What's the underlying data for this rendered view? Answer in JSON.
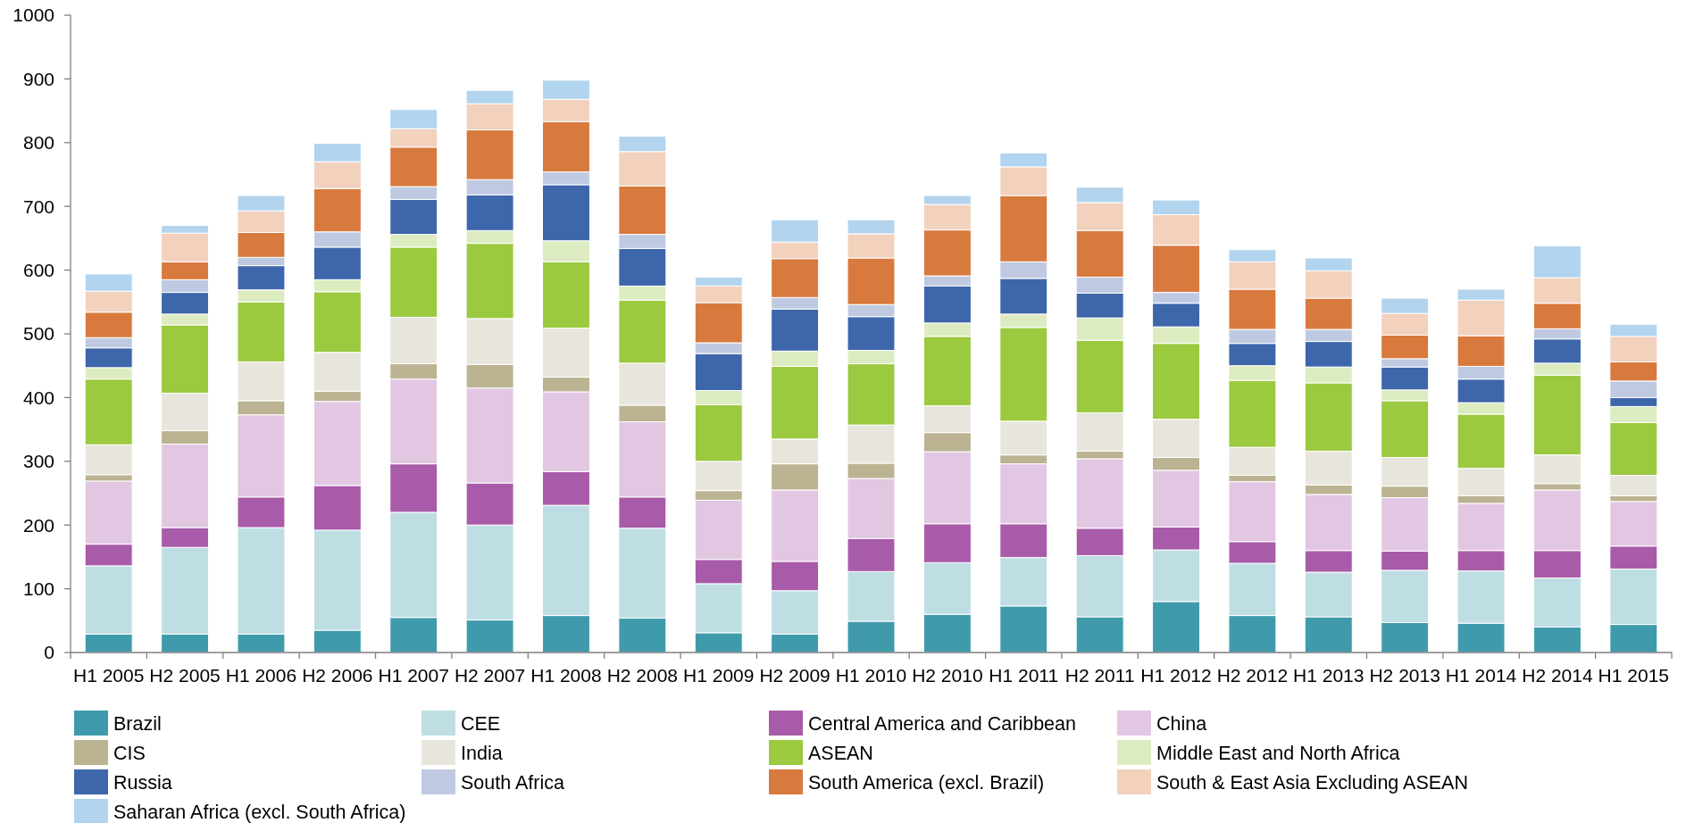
{
  "chart_data": {
    "type": "bar",
    "stacked": true,
    "legend": "bottom",
    "categories": [
      "H1 2005",
      "H2 2005",
      "H1 2006",
      "H2 2006",
      "H1 2007",
      "H2 2007",
      "H1 2008",
      "H2 2008",
      "H1 2009",
      "H2 2009",
      "H1 2010",
      "H2 2010",
      "H1 2011",
      "H2 2011",
      "H1 2012",
      "H2 2012",
      "H1 2013",
      "H2 2013",
      "H1 2014",
      "H2 2014",
      "H1 2015"
    ],
    "ylim": [
      0,
      1000
    ],
    "yticks": [
      0,
      100,
      200,
      300,
      400,
      500,
      600,
      700,
      800,
      900,
      1000
    ],
    "series": [
      {
        "name": "Brazil",
        "color": "#3f9bab",
        "values": [
          29,
          29,
          29,
          35,
          55,
          51,
          58,
          54,
          31,
          29,
          49,
          60,
          73,
          56,
          80,
          58,
          56,
          47,
          46,
          40,
          44
        ]
      },
      {
        "name": "CEE",
        "color": "#bfdee3",
        "values": [
          107,
          136,
          167,
          157,
          165,
          149,
          173,
          141,
          77,
          68,
          78,
          81,
          76,
          96,
          81,
          82,
          70,
          82,
          82,
          77,
          87
        ]
      },
      {
        "name": "Central America and Caribbean",
        "color": "#a85ba8",
        "values": [
          34,
          31,
          48,
          70,
          76,
          66,
          53,
          49,
          38,
          46,
          52,
          61,
          53,
          43,
          36,
          34,
          34,
          30,
          32,
          43,
          36
        ]
      },
      {
        "name": "China",
        "color": "#e2c7e2",
        "values": [
          99,
          131,
          129,
          132,
          133,
          149,
          125,
          118,
          93,
          112,
          94,
          113,
          94,
          109,
          89,
          94,
          88,
          84,
          74,
          95,
          70
        ]
      },
      {
        "name": "CIS",
        "color": "#bbb391",
        "values": [
          10,
          21,
          22,
          16,
          24,
          37,
          23,
          26,
          15,
          41,
          24,
          30,
          14,
          12,
          20,
          10,
          15,
          18,
          12,
          10,
          9
        ]
      },
      {
        "name": "India",
        "color": "#e8e6dc",
        "values": [
          47,
          59,
          61,
          61,
          73,
          72,
          77,
          66,
          46,
          39,
          60,
          42,
          53,
          60,
          60,
          44,
          53,
          45,
          43,
          45,
          32
        ]
      },
      {
        "name": "ASEAN",
        "color": "#9bc93f",
        "values": [
          103,
          107,
          94,
          95,
          110,
          118,
          104,
          99,
          89,
          114,
          96,
          109,
          147,
          114,
          119,
          105,
          107,
          89,
          85,
          125,
          83
        ]
      },
      {
        "name": "Middle East and North Africa",
        "color": "#ddecc0",
        "values": [
          18,
          17,
          19,
          19,
          20,
          20,
          33,
          22,
          22,
          24,
          21,
          21,
          21,
          35,
          26,
          23,
          25,
          17,
          18,
          19,
          25
        ]
      },
      {
        "name": "Russia",
        "color": "#3e66aa",
        "values": [
          31,
          34,
          38,
          51,
          55,
          56,
          88,
          59,
          58,
          66,
          53,
          58,
          56,
          39,
          37,
          35,
          40,
          36,
          37,
          38,
          14
        ]
      },
      {
        "name": "South Africa",
        "color": "#bfcae2",
        "values": [
          16,
          20,
          13,
          24,
          20,
          24,
          20,
          22,
          17,
          18,
          19,
          16,
          26,
          25,
          17,
          22,
          19,
          13,
          20,
          16,
          26
        ]
      },
      {
        "name": "South America (excl. Brazil)",
        "color": "#d8793e",
        "values": [
          40,
          28,
          39,
          68,
          62,
          78,
          79,
          76,
          63,
          61,
          73,
          72,
          104,
          73,
          74,
          63,
          49,
          37,
          48,
          40,
          30
        ]
      },
      {
        "name": "South & East Asia Excluding ASEAN",
        "color": "#f2d1bd",
        "values": [
          33,
          45,
          34,
          42,
          29,
          41,
          35,
          54,
          26,
          26,
          38,
          40,
          45,
          44,
          48,
          43,
          43,
          34,
          56,
          40,
          40
        ]
      },
      {
        "name": "Saharan Africa (excl. South Africa)",
        "color": "#b2d4ee",
        "values": [
          27,
          12,
          24,
          29,
          30,
          21,
          30,
          24,
          14,
          35,
          22,
          14,
          22,
          24,
          23,
          19,
          20,
          24,
          17,
          50,
          19
        ]
      }
    ]
  }
}
